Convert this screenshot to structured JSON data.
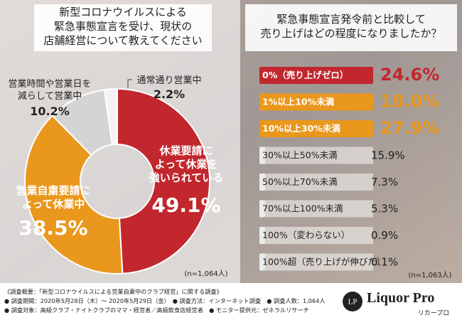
{
  "chart_data": [
    {
      "type": "donut",
      "title": "新型コロナウイルスによる\n緊急事態宣言を受け、現状の\n店舗経営について教えてください",
      "categories": [
        "休業要請に\nよって休業を\n強いられている",
        "営業自粛要請に\nよって休業中",
        "営業時間や営業日を\n減らして営業中",
        "通常通り営業中"
      ],
      "values": [
        49.1,
        38.5,
        10.2,
        2.2
      ],
      "value_labels": [
        "49.1%",
        "38.5%",
        "10.2%",
        "2.2%"
      ],
      "colors": [
        "#c1272d",
        "#e9971d",
        "#d4d4d4",
        "#f3f3f3"
      ],
      "note": "(n=1,064人)"
    },
    {
      "type": "ranking",
      "title": "緊急事態宣言発令前と比較して\n売り上げはどの程度になりましたか？",
      "categories": [
        "0%（売り上げゼロ）",
        "1%以上10%未満",
        "10%以上30%未満",
        "30%以上50%未満",
        "50%以上70%未満",
        "70%以上100%未満",
        "100%（変わらない）",
        "100%超（売り上げが伸びた）"
      ],
      "values": [
        24.6,
        18.0,
        27.9,
        15.9,
        7.3,
        5.3,
        0.9,
        0.1
      ],
      "value_labels": [
        "24.6%",
        "18.0%",
        "27.9%",
        "15.9%",
        "7.3%",
        "5.3%",
        "0.9%",
        "0.1%"
      ],
      "colors": [
        "#c1272d",
        "#e9971d",
        "#e9971d",
        "#d9d9d9",
        "#d9d9d9",
        "#d9d9d9",
        "#d9d9d9",
        "#d9d9d9"
      ],
      "note": "(n=1,063人)"
    }
  ],
  "footer": {
    "lines": [
      "《調査概要：「新型コロナウイルスによる営業自粛中のクラブ経営」に関する調査》",
      "● 調査期間：2020年5月28日（木）～ 2020年5月29日（金）　● 調査方法：インターネット調査　● 調査人数：1,064人",
      "● 調査対象：高級クラブ・ナイトクラブのママ・経営者／高級飲食店経営者　● モニター提供元：ゼネラルリサーチ"
    ],
    "logo": "Liquor Pro",
    "logo_sub": "リカープロ"
  }
}
